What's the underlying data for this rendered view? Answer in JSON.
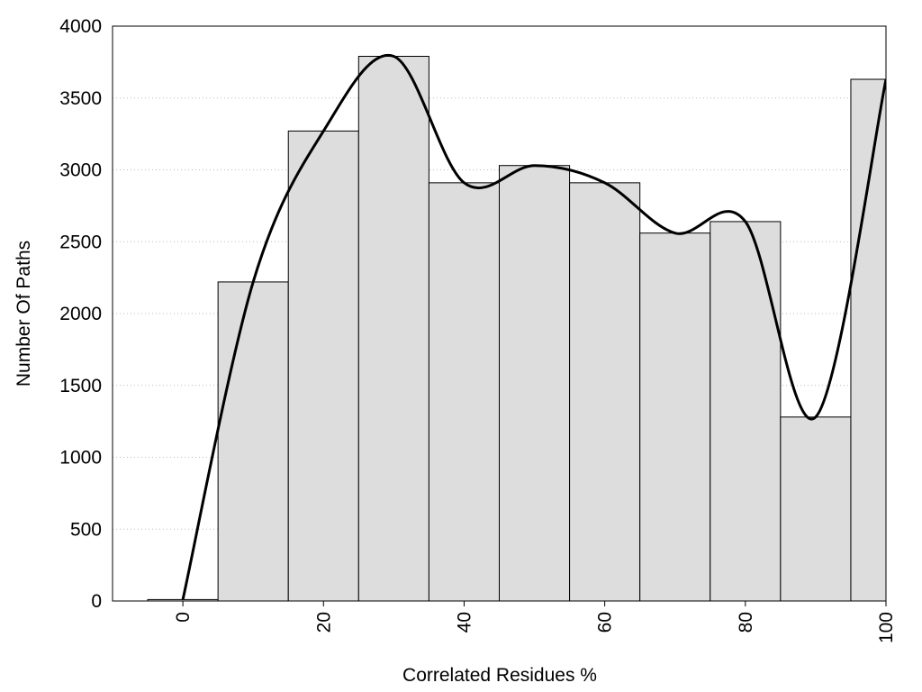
{
  "chart_data": {
    "type": "bar",
    "x": [
      0,
      10,
      20,
      30,
      40,
      50,
      60,
      70,
      80,
      90,
      100
    ],
    "values": [
      10,
      2220,
      3270,
      3790,
      2910,
      3030,
      2910,
      2560,
      2640,
      1280,
      3630
    ],
    "color": "#dddddd",
    "line": true,
    "line_color": "#000000",
    "xlim": [
      -10,
      100
    ],
    "xticks": [
      0,
      20,
      40,
      60,
      80,
      100
    ],
    "ylim": [
      0,
      4000
    ],
    "yticks": [
      0,
      500,
      1000,
      1500,
      2000,
      2500,
      3000,
      3500,
      4000
    ],
    "grid": true,
    "xlabel": "Correlated Residues %",
    "ylabel": "Number Of Paths"
  }
}
